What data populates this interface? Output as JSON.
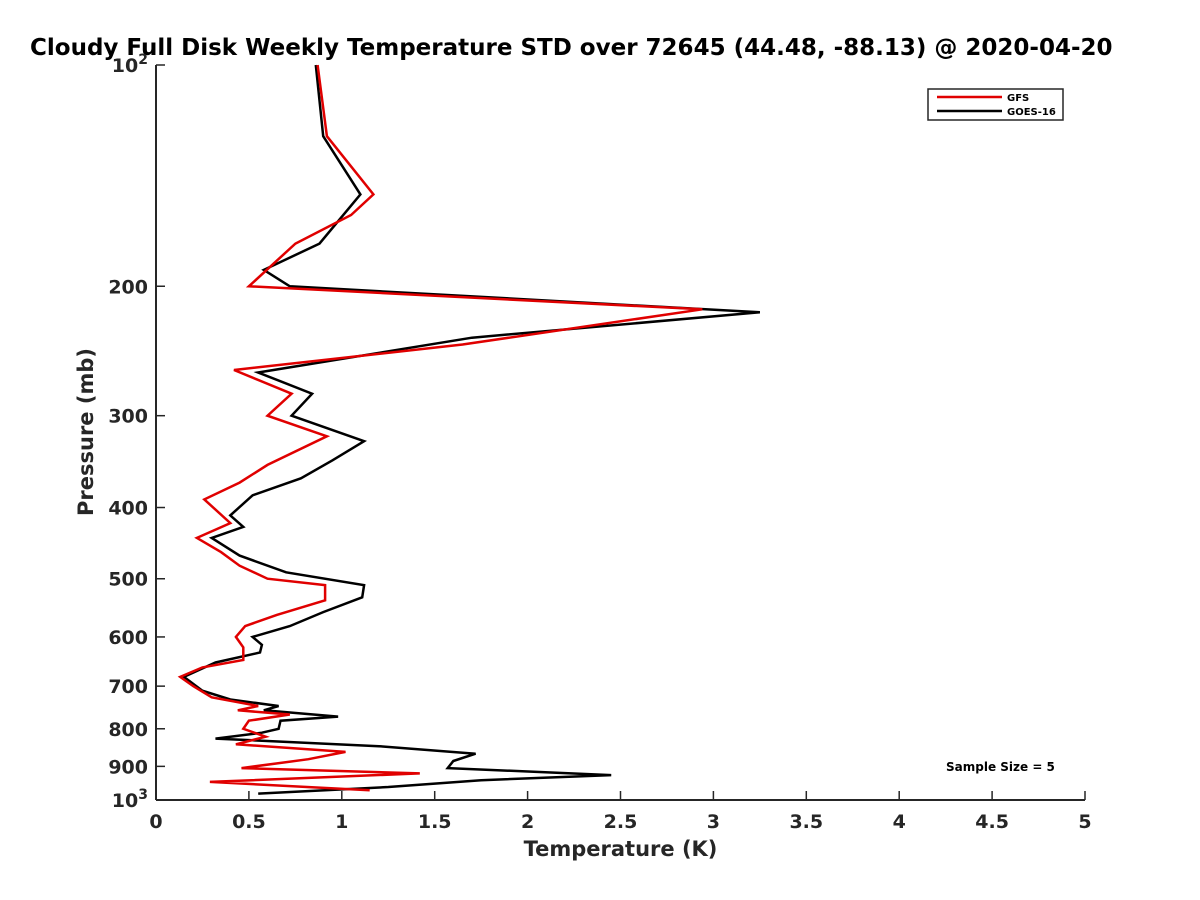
{
  "chart_data": {
    "type": "line",
    "title": "Cloudy Full Disk Weekly Temperature STD over 72645 (44.48, -88.13) @ 2020-04-20",
    "xlabel": "Temperature (K)",
    "ylabel": "Pressure (mb)",
    "xlim": [
      0,
      5
    ],
    "ylim": [
      100,
      1000
    ],
    "y_scale": "log",
    "y_reversed": true,
    "x_ticks": [
      "0",
      "0.5",
      "1",
      "1.5",
      "2",
      "2.5",
      "3",
      "3.5",
      "4",
      "4.5",
      "5"
    ],
    "y_ticks": [
      {
        "value": 100,
        "base": "10",
        "exp": "2"
      },
      {
        "value": 200,
        "label": "200"
      },
      {
        "value": 300,
        "label": "300"
      },
      {
        "value": 400,
        "label": "400"
      },
      {
        "value": 500,
        "label": "500"
      },
      {
        "value": 600,
        "label": "600"
      },
      {
        "value": 700,
        "label": "700"
      },
      {
        "value": 800,
        "label": "800"
      },
      {
        "value": 900,
        "label": "900"
      },
      {
        "value": 1000,
        "base": "10",
        "exp": "3"
      }
    ],
    "legend": {
      "placement": "top-right"
    },
    "annotation": "Sample Size = 5",
    "grid": false,
    "series": [
      {
        "name": "GFS",
        "color": "#e00000",
        "points": [
          [
            0.87,
            100
          ],
          [
            0.92,
            125
          ],
          [
            1.17,
            150
          ],
          [
            1.05,
            160
          ],
          [
            0.75,
            175
          ],
          [
            0.5,
            200
          ],
          [
            2.94,
            215
          ],
          [
            1.65,
            240
          ],
          [
            0.42,
            260
          ],
          [
            0.73,
            280
          ],
          [
            0.6,
            300
          ],
          [
            0.92,
            320
          ],
          [
            0.6,
            350
          ],
          [
            0.45,
            370
          ],
          [
            0.26,
            390
          ],
          [
            0.4,
            420
          ],
          [
            0.22,
            440
          ],
          [
            0.35,
            460
          ],
          [
            0.45,
            480
          ],
          [
            0.6,
            500
          ],
          [
            0.91,
            510
          ],
          [
            0.91,
            535
          ],
          [
            0.65,
            560
          ],
          [
            0.48,
            580
          ],
          [
            0.43,
            600
          ],
          [
            0.47,
            620
          ],
          [
            0.47,
            645
          ],
          [
            0.25,
            660
          ],
          [
            0.13,
            680
          ],
          [
            0.2,
            700
          ],
          [
            0.3,
            725
          ],
          [
            0.55,
            745
          ],
          [
            0.44,
            755
          ],
          [
            0.72,
            765
          ],
          [
            0.5,
            780
          ],
          [
            0.47,
            800
          ],
          [
            0.59,
            820
          ],
          [
            0.43,
            840
          ],
          [
            1.02,
            860
          ],
          [
            0.82,
            880
          ],
          [
            0.46,
            905
          ],
          [
            1.42,
            920
          ],
          [
            0.29,
            945
          ],
          [
            1.15,
            970
          ]
        ]
      },
      {
        "name": "GOES-16",
        "color": "#000000",
        "points": [
          [
            0.86,
            100
          ],
          [
            0.9,
            125
          ],
          [
            1.1,
            150
          ],
          [
            0.88,
            175
          ],
          [
            0.58,
            190
          ],
          [
            0.72,
            200
          ],
          [
            3.25,
            217
          ],
          [
            1.7,
            235
          ],
          [
            0.55,
            262
          ],
          [
            0.84,
            280
          ],
          [
            0.73,
            300
          ],
          [
            1.12,
            325
          ],
          [
            0.95,
            345
          ],
          [
            0.78,
            365
          ],
          [
            0.52,
            385
          ],
          [
            0.4,
            410
          ],
          [
            0.47,
            425
          ],
          [
            0.3,
            440
          ],
          [
            0.45,
            465
          ],
          [
            0.7,
            490
          ],
          [
            1.12,
            510
          ],
          [
            1.11,
            530
          ],
          [
            0.9,
            555
          ],
          [
            0.72,
            580
          ],
          [
            0.52,
            600
          ],
          [
            0.57,
            615
          ],
          [
            0.56,
            630
          ],
          [
            0.32,
            650
          ],
          [
            0.15,
            680
          ],
          [
            0.25,
            710
          ],
          [
            0.4,
            730
          ],
          [
            0.66,
            745
          ],
          [
            0.58,
            755
          ],
          [
            0.98,
            770
          ],
          [
            0.67,
            780
          ],
          [
            0.66,
            800
          ],
          [
            0.57,
            810
          ],
          [
            0.32,
            825
          ],
          [
            1.2,
            845
          ],
          [
            1.72,
            865
          ],
          [
            1.6,
            885
          ],
          [
            1.57,
            905
          ],
          [
            2.45,
            925
          ],
          [
            1.75,
            940
          ],
          [
            1.25,
            960
          ],
          [
            0.55,
            980
          ]
        ]
      }
    ]
  }
}
